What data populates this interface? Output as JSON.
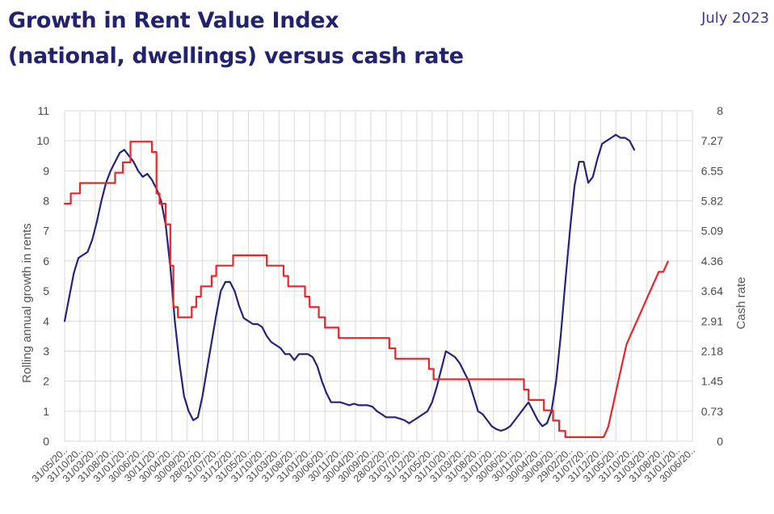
{
  "header": {
    "title_line1": "Growth in Rent Value Index",
    "title_line2": "(national, dwellings) versus cash rate",
    "date": "July 2023"
  },
  "chart_data": {
    "type": "line",
    "ylabel": "Rolling annual growth in rents",
    "y2label": "Cash rate",
    "ylim": [
      0,
      11
    ],
    "y2lim": [
      0,
      8
    ],
    "yticks": [
      "0",
      "1",
      "2",
      "3",
      "4",
      "5",
      "6",
      "7",
      "8",
      "9",
      "10",
      "11"
    ],
    "y2ticks": [
      "0",
      "0.73",
      "1.45",
      "2.18",
      "2.91",
      "3.64",
      "4.36",
      "5.09",
      "5.82",
      "6.55",
      "7.27",
      "8"
    ],
    "grid": true,
    "xticks": [
      "31/05/20..",
      "31/10/20..",
      "31/03/20..",
      "31/08/20..",
      "31/01/20..",
      "30/06/20..",
      "30/11/20..",
      "30/04/20..",
      "30/09/20..",
      "28/02/20..",
      "31/07/20..",
      "31/12/20..",
      "31/05/20..",
      "31/10/20..",
      "31/03/20..",
      "31/08/20..",
      "31/01/20..",
      "30/06/20..",
      "30/11/20..",
      "30/04/20..",
      "30/09/20..",
      "28/02/20..",
      "31/07/20..",
      "31/12/20..",
      "31/05/20..",
      "31/10/20..",
      "31/03/20..",
      "31/08/20..",
      "31/01/20..",
      "30/06/20..",
      "30/11/20..",
      "30/04/20..",
      "30/09/20..",
      "29/02/20..",
      "31/07/20..",
      "31/12/20..",
      "31/05/20..",
      "31/10/20..",
      "31/03/20..",
      "31/08/20..",
      "31/01/20..",
      "30/06/20.."
    ],
    "series": [
      {
        "name": "Rent Value Index growth",
        "axis": "left",
        "color": "#26237a",
        "points": [
          [
            0,
            4.0
          ],
          [
            0.3,
            4.8
          ],
          [
            0.6,
            5.6
          ],
          [
            0.9,
            6.1
          ],
          [
            1.2,
            6.2
          ],
          [
            1.5,
            6.3
          ],
          [
            1.8,
            6.7
          ],
          [
            2.1,
            7.3
          ],
          [
            2.4,
            8.0
          ],
          [
            2.7,
            8.6
          ],
          [
            3.0,
            9.0
          ],
          [
            3.3,
            9.3
          ],
          [
            3.6,
            9.6
          ],
          [
            3.9,
            9.7
          ],
          [
            4.2,
            9.5
          ],
          [
            4.5,
            9.3
          ],
          [
            4.8,
            9.0
          ],
          [
            5.1,
            8.8
          ],
          [
            5.4,
            8.9
          ],
          [
            5.7,
            8.7
          ],
          [
            6.0,
            8.4
          ],
          [
            6.3,
            8.0
          ],
          [
            6.6,
            7.2
          ],
          [
            6.9,
            5.8
          ],
          [
            7.2,
            4.0
          ],
          [
            7.5,
            2.6
          ],
          [
            7.8,
            1.5
          ],
          [
            8.1,
            1.0
          ],
          [
            8.4,
            0.7
          ],
          [
            8.7,
            0.8
          ],
          [
            9.0,
            1.5
          ],
          [
            9.3,
            2.4
          ],
          [
            9.6,
            3.3
          ],
          [
            9.9,
            4.2
          ],
          [
            10.2,
            5.0
          ],
          [
            10.5,
            5.3
          ],
          [
            10.8,
            5.3
          ],
          [
            11.1,
            5.0
          ],
          [
            11.4,
            4.5
          ],
          [
            11.7,
            4.1
          ],
          [
            12.0,
            4.0
          ],
          [
            12.3,
            3.9
          ],
          [
            12.6,
            3.9
          ],
          [
            12.9,
            3.8
          ],
          [
            13.2,
            3.5
          ],
          [
            13.5,
            3.3
          ],
          [
            13.8,
            3.2
          ],
          [
            14.1,
            3.1
          ],
          [
            14.4,
            2.9
          ],
          [
            14.7,
            2.9
          ],
          [
            15.0,
            2.7
          ],
          [
            15.3,
            2.9
          ],
          [
            15.6,
            2.9
          ],
          [
            15.9,
            2.9
          ],
          [
            16.2,
            2.8
          ],
          [
            16.5,
            2.5
          ],
          [
            16.8,
            2.0
          ],
          [
            17.1,
            1.6
          ],
          [
            17.4,
            1.3
          ],
          [
            17.7,
            1.3
          ],
          [
            18.0,
            1.3
          ],
          [
            18.3,
            1.25
          ],
          [
            18.6,
            1.2
          ],
          [
            18.9,
            1.25
          ],
          [
            19.2,
            1.2
          ],
          [
            19.5,
            1.2
          ],
          [
            19.8,
            1.2
          ],
          [
            20.1,
            1.15
          ],
          [
            20.4,
            1.0
          ],
          [
            20.7,
            0.9
          ],
          [
            21.0,
            0.8
          ],
          [
            21.3,
            0.8
          ],
          [
            21.6,
            0.8
          ],
          [
            21.9,
            0.75
          ],
          [
            22.2,
            0.7
          ],
          [
            22.5,
            0.6
          ],
          [
            22.8,
            0.7
          ],
          [
            23.1,
            0.8
          ],
          [
            23.4,
            0.9
          ],
          [
            23.7,
            1.0
          ],
          [
            24.0,
            1.3
          ],
          [
            24.3,
            1.8
          ],
          [
            24.6,
            2.4
          ],
          [
            24.9,
            3.0
          ],
          [
            25.2,
            2.9
          ],
          [
            25.5,
            2.8
          ],
          [
            25.8,
            2.6
          ],
          [
            26.1,
            2.3
          ],
          [
            26.4,
            2.0
          ],
          [
            26.7,
            1.5
          ],
          [
            27.0,
            1.0
          ],
          [
            27.3,
            0.9
          ],
          [
            27.6,
            0.7
          ],
          [
            27.9,
            0.5
          ],
          [
            28.2,
            0.4
          ],
          [
            28.5,
            0.35
          ],
          [
            28.8,
            0.4
          ],
          [
            29.1,
            0.5
          ],
          [
            29.4,
            0.7
          ],
          [
            29.7,
            0.9
          ],
          [
            30.0,
            1.1
          ],
          [
            30.3,
            1.3
          ],
          [
            30.6,
            1.0
          ],
          [
            30.9,
            0.7
          ],
          [
            31.2,
            0.5
          ],
          [
            31.5,
            0.6
          ],
          [
            31.8,
            1.0
          ],
          [
            32.1,
            2.0
          ],
          [
            32.4,
            3.5
          ],
          [
            32.7,
            5.3
          ],
          [
            33.0,
            7.0
          ],
          [
            33.3,
            8.5
          ],
          [
            33.6,
            9.3
          ],
          [
            33.9,
            9.3
          ],
          [
            34.2,
            8.6
          ],
          [
            34.5,
            8.8
          ],
          [
            34.8,
            9.4
          ],
          [
            35.1,
            9.9
          ],
          [
            35.4,
            10.0
          ],
          [
            35.7,
            10.1
          ],
          [
            36.0,
            10.2
          ],
          [
            36.3,
            10.1
          ],
          [
            36.6,
            10.1
          ],
          [
            36.9,
            10.0
          ],
          [
            37.2,
            9.7
          ]
        ]
      },
      {
        "name": "Cash rate",
        "axis": "right",
        "color": "#e8262a",
        "points": [
          [
            0,
            5.75
          ],
          [
            0.4,
            5.75
          ],
          [
            0.4,
            6.0
          ],
          [
            1.0,
            6.0
          ],
          [
            1.0,
            6.25
          ],
          [
            3.3,
            6.25
          ],
          [
            3.3,
            6.5
          ],
          [
            3.8,
            6.5
          ],
          [
            3.8,
            6.75
          ],
          [
            4.3,
            6.75
          ],
          [
            4.3,
            7.25
          ],
          [
            5.7,
            7.25
          ],
          [
            5.7,
            7.0
          ],
          [
            6.0,
            7.0
          ],
          [
            6.0,
            6.0
          ],
          [
            6.2,
            6.0
          ],
          [
            6.2,
            5.75
          ],
          [
            6.6,
            5.75
          ],
          [
            6.6,
            5.25
          ],
          [
            6.9,
            5.25
          ],
          [
            6.9,
            4.25
          ],
          [
            7.1,
            4.25
          ],
          [
            7.1,
            3.25
          ],
          [
            7.4,
            3.25
          ],
          [
            7.4,
            3.0
          ],
          [
            8.3,
            3.0
          ],
          [
            8.3,
            3.25
          ],
          [
            8.6,
            3.25
          ],
          [
            8.6,
            3.5
          ],
          [
            8.9,
            3.5
          ],
          [
            8.9,
            3.75
          ],
          [
            9.6,
            3.75
          ],
          [
            9.6,
            4.0
          ],
          [
            9.9,
            4.0
          ],
          [
            9.9,
            4.25
          ],
          [
            11.0,
            4.25
          ],
          [
            11.0,
            4.5
          ],
          [
            13.2,
            4.5
          ],
          [
            13.2,
            4.25
          ],
          [
            14.3,
            4.25
          ],
          [
            14.3,
            4.0
          ],
          [
            14.6,
            4.0
          ],
          [
            14.6,
            3.75
          ],
          [
            15.7,
            3.75
          ],
          [
            15.7,
            3.5
          ],
          [
            16.0,
            3.5
          ],
          [
            16.0,
            3.25
          ],
          [
            16.6,
            3.25
          ],
          [
            16.6,
            3.0
          ],
          [
            17.0,
            3.0
          ],
          [
            17.0,
            2.75
          ],
          [
            17.9,
            2.75
          ],
          [
            17.9,
            2.5
          ],
          [
            21.2,
            2.5
          ],
          [
            21.2,
            2.25
          ],
          [
            21.6,
            2.25
          ],
          [
            21.6,
            2.0
          ],
          [
            23.8,
            2.0
          ],
          [
            23.8,
            1.75
          ],
          [
            24.1,
            1.75
          ],
          [
            24.1,
            1.5
          ],
          [
            30.0,
            1.5
          ],
          [
            30.0,
            1.25
          ],
          [
            30.3,
            1.25
          ],
          [
            30.3,
            1.0
          ],
          [
            31.3,
            1.0
          ],
          [
            31.3,
            0.75
          ],
          [
            31.9,
            0.75
          ],
          [
            31.9,
            0.5
          ],
          [
            32.3,
            0.5
          ],
          [
            32.3,
            0.25
          ],
          [
            32.7,
            0.25
          ],
          [
            32.7,
            0.1
          ],
          [
            35.2,
            0.1
          ],
          [
            35.5,
            0.35
          ],
          [
            35.8,
            0.85
          ],
          [
            36.1,
            1.35
          ],
          [
            36.4,
            1.85
          ],
          [
            36.7,
            2.35
          ],
          [
            37.0,
            2.6
          ],
          [
            37.3,
            2.85
          ],
          [
            37.6,
            3.1
          ],
          [
            37.9,
            3.35
          ],
          [
            38.2,
            3.6
          ],
          [
            38.5,
            3.85
          ],
          [
            38.8,
            4.1
          ],
          [
            39.1,
            4.1
          ],
          [
            39.4,
            4.35
          ]
        ]
      }
    ]
  }
}
